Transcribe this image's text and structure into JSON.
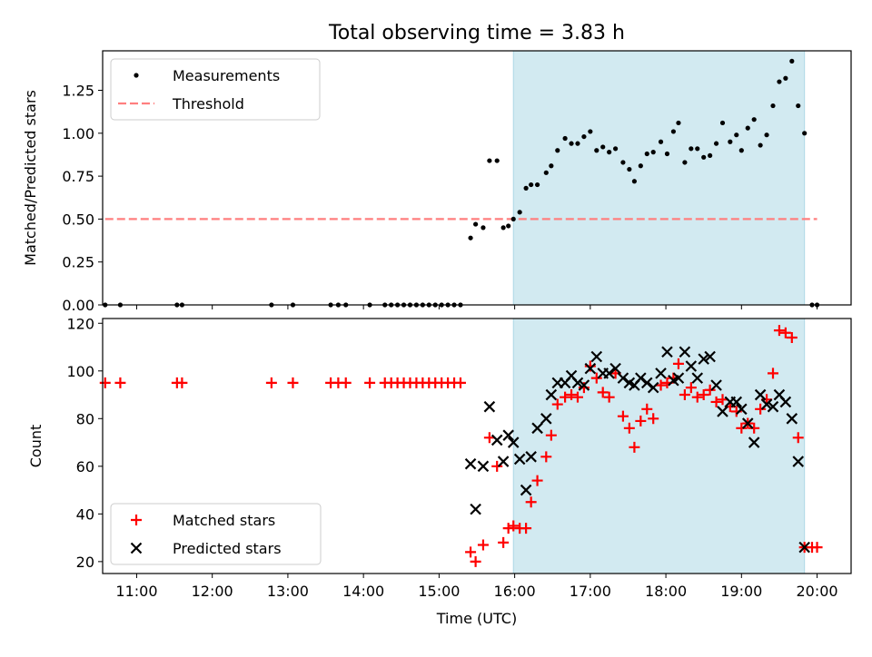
{
  "title": "Total observing time = 3.83 h",
  "colors": {
    "shade": "#add8e6",
    "threshold": "#ff7f7f",
    "matched": "#ff0000",
    "predicted": "#000000"
  },
  "chart_data": [
    {
      "type": "scatter",
      "panel": "top",
      "ylabel": "Matched/Predicted stars",
      "xlabel": "",
      "x_unit": "time (UTC)",
      "xlim": [
        "10:33",
        "20:27"
      ],
      "ylim": [
        0,
        1.48
      ],
      "yticks": [
        0,
        0.25,
        0.5,
        0.75,
        1.0,
        1.25
      ],
      "ytick_labels": [
        "0.00",
        "0.25",
        "0.50",
        "0.75",
        "1.00",
        "1.25"
      ],
      "shaded_interval": [
        "15:59",
        "19:50"
      ],
      "threshold": {
        "value": 0.5,
        "xrange": [
          "10:35",
          "20:00"
        ]
      },
      "legend": {
        "placement": "top-left",
        "entries": [
          "Measurements",
          "Threshold"
        ]
      },
      "series": [
        {
          "name": "Measurements",
          "points": [
            [
              "10:35",
              0
            ],
            [
              "10:47",
              0
            ],
            [
              "11:32",
              0
            ],
            [
              "11:36",
              0
            ],
            [
              "12:47",
              0
            ],
            [
              "13:04",
              0
            ],
            [
              "13:34",
              0
            ],
            [
              "13:40",
              0
            ],
            [
              "13:46",
              0
            ],
            [
              "14:05",
              0
            ],
            [
              "14:17",
              0
            ],
            [
              "14:22",
              0
            ],
            [
              "14:27",
              0
            ],
            [
              "14:32",
              0
            ],
            [
              "14:37",
              0
            ],
            [
              "14:42",
              0
            ],
            [
              "14:47",
              0
            ],
            [
              "14:52",
              0
            ],
            [
              "14:57",
              0
            ],
            [
              "15:02",
              0
            ],
            [
              "15:07",
              0
            ],
            [
              "15:12",
              0
            ],
            [
              "15:17",
              0
            ],
            [
              "15:25",
              0.39
            ],
            [
              "15:29",
              0.47
            ],
            [
              "15:35",
              0.45
            ],
            [
              "15:40",
              0.84
            ],
            [
              "15:46",
              0.84
            ],
            [
              "15:51",
              0.45
            ],
            [
              "15:55",
              0.46
            ],
            [
              "15:59",
              0.5
            ],
            [
              "16:04",
              0.54
            ],
            [
              "16:09",
              0.68
            ],
            [
              "16:13",
              0.7
            ],
            [
              "16:18",
              0.7
            ],
            [
              "16:25",
              0.77
            ],
            [
              "16:29",
              0.81
            ],
            [
              "16:34",
              0.9
            ],
            [
              "16:40",
              0.97
            ],
            [
              "16:45",
              0.94
            ],
            [
              "16:50",
              0.94
            ],
            [
              "16:55",
              0.98
            ],
            [
              "17:00",
              1.01
            ],
            [
              "17:05",
              0.9
            ],
            [
              "17:10",
              0.92
            ],
            [
              "17:15",
              0.89
            ],
            [
              "17:20",
              0.91
            ],
            [
              "17:26",
              0.83
            ],
            [
              "17:31",
              0.79
            ],
            [
              "17:35",
              0.72
            ],
            [
              "17:40",
              0.81
            ],
            [
              "17:45",
              0.88
            ],
            [
              "17:50",
              0.89
            ],
            [
              "17:56",
              0.95
            ],
            [
              "18:01",
              0.88
            ],
            [
              "18:06",
              1.01
            ],
            [
              "18:10",
              1.06
            ],
            [
              "18:15",
              0.83
            ],
            [
              "18:20",
              0.91
            ],
            [
              "18:25",
              0.91
            ],
            [
              "18:30",
              0.86
            ],
            [
              "18:35",
              0.87
            ],
            [
              "18:40",
              0.94
            ],
            [
              "18:45",
              1.06
            ],
            [
              "18:51",
              0.95
            ],
            [
              "18:56",
              0.99
            ],
            [
              "19:00",
              0.9
            ],
            [
              "19:05",
              1.03
            ],
            [
              "19:10",
              1.08
            ],
            [
              "19:15",
              0.93
            ],
            [
              "19:20",
              0.99
            ],
            [
              "19:25",
              1.16
            ],
            [
              "19:30",
              1.3
            ],
            [
              "19:35",
              1.32
            ],
            [
              "19:40",
              1.42
            ],
            [
              "19:45",
              1.16
            ],
            [
              "19:50",
              1.0
            ],
            [
              "19:56",
              0
            ],
            [
              "20:00",
              0
            ]
          ]
        }
      ]
    },
    {
      "type": "scatter",
      "panel": "bottom",
      "xlabel": "Time (UTC)",
      "ylabel": "Count",
      "xlim": [
        "10:33",
        "20:27"
      ],
      "ylim": [
        15,
        122
      ],
      "xticks": [
        "11:00",
        "12:00",
        "13:00",
        "14:00",
        "15:00",
        "16:00",
        "17:00",
        "18:00",
        "19:00",
        "20:00"
      ],
      "yticks": [
        20,
        40,
        60,
        80,
        100,
        120
      ],
      "shaded_interval": [
        "15:59",
        "19:50"
      ],
      "legend": {
        "placement": "bottom-left",
        "entries": [
          "Matched stars",
          "Predicted stars"
        ]
      },
      "series": [
        {
          "name": "Matched stars",
          "marker": "+",
          "points": [
            [
              "10:35",
              95
            ],
            [
              "10:47",
              95
            ],
            [
              "11:32",
              95
            ],
            [
              "11:36",
              95
            ],
            [
              "12:47",
              95
            ],
            [
              "13:04",
              95
            ],
            [
              "13:34",
              95
            ],
            [
              "13:40",
              95
            ],
            [
              "13:46",
              95
            ],
            [
              "14:05",
              95
            ],
            [
              "14:17",
              95
            ],
            [
              "14:22",
              95
            ],
            [
              "14:27",
              95
            ],
            [
              "14:32",
              95
            ],
            [
              "14:37",
              95
            ],
            [
              "14:42",
              95
            ],
            [
              "14:47",
              95
            ],
            [
              "14:52",
              95
            ],
            [
              "14:57",
              95
            ],
            [
              "15:02",
              95
            ],
            [
              "15:07",
              95
            ],
            [
              "15:12",
              95
            ],
            [
              "15:17",
              95
            ],
            [
              "15:25",
              24
            ],
            [
              "15:29",
              20
            ],
            [
              "15:35",
              27
            ],
            [
              "15:40",
              72
            ],
            [
              "15:46",
              60
            ],
            [
              "15:51",
              28
            ],
            [
              "15:55",
              34
            ],
            [
              "15:59",
              35
            ],
            [
              "16:04",
              34
            ],
            [
              "16:09",
              34
            ],
            [
              "16:13",
              45
            ],
            [
              "16:18",
              54
            ],
            [
              "16:25",
              64
            ],
            [
              "16:29",
              73
            ],
            [
              "16:34",
              86
            ],
            [
              "16:40",
              89
            ],
            [
              "16:45",
              90
            ],
            [
              "16:50",
              89
            ],
            [
              "16:55",
              93
            ],
            [
              "17:00",
              102
            ],
            [
              "17:05",
              97
            ],
            [
              "17:10",
              91
            ],
            [
              "17:15",
              89
            ],
            [
              "17:20",
              99
            ],
            [
              "17:26",
              81
            ],
            [
              "17:31",
              76
            ],
            [
              "17:35",
              68
            ],
            [
              "17:40",
              79
            ],
            [
              "17:45",
              84
            ],
            [
              "17:50",
              80
            ],
            [
              "17:56",
              94
            ],
            [
              "18:01",
              95
            ],
            [
              "18:06",
              97
            ],
            [
              "18:10",
              103
            ],
            [
              "18:15",
              90
            ],
            [
              "18:20",
              93
            ],
            [
              "18:25",
              89
            ],
            [
              "18:30",
              90
            ],
            [
              "18:35",
              92
            ],
            [
              "18:40",
              87
            ],
            [
              "18:45",
              88
            ],
            [
              "18:51",
              85
            ],
            [
              "18:56",
              83
            ],
            [
              "19:00",
              76
            ],
            [
              "19:05",
              78
            ],
            [
              "19:10",
              76
            ],
            [
              "19:15",
              84
            ],
            [
              "19:20",
              88
            ],
            [
              "19:25",
              99
            ],
            [
              "19:30",
              117
            ],
            [
              "19:35",
              116
            ],
            [
              "19:40",
              114
            ],
            [
              "19:45",
              72
            ],
            [
              "19:50",
              26
            ],
            [
              "19:56",
              26
            ],
            [
              "20:00",
              26
            ]
          ]
        },
        {
          "name": "Predicted stars",
          "marker": "x",
          "points": [
            [
              "15:25",
              61
            ],
            [
              "15:29",
              42
            ],
            [
              "15:35",
              60
            ],
            [
              "15:40",
              85
            ],
            [
              "15:46",
              71
            ],
            [
              "15:51",
              62
            ],
            [
              "15:55",
              73
            ],
            [
              "15:59",
              70
            ],
            [
              "16:04",
              63
            ],
            [
              "16:09",
              50
            ],
            [
              "16:13",
              64
            ],
            [
              "16:18",
              76
            ],
            [
              "16:25",
              80
            ],
            [
              "16:29",
              90
            ],
            [
              "16:34",
              95
            ],
            [
              "16:40",
              95
            ],
            [
              "16:45",
              98
            ],
            [
              "16:50",
              95
            ],
            [
              "16:55",
              94
            ],
            [
              "17:00",
              101
            ],
            [
              "17:05",
              106
            ],
            [
              "17:10",
              99
            ],
            [
              "17:15",
              99
            ],
            [
              "17:20",
              101
            ],
            [
              "17:26",
              97
            ],
            [
              "17:31",
              95
            ],
            [
              "17:35",
              94
            ],
            [
              "17:40",
              97
            ],
            [
              "17:45",
              95
            ],
            [
              "17:50",
              93
            ],
            [
              "17:56",
              99
            ],
            [
              "18:01",
              108
            ],
            [
              "18:06",
              96
            ],
            [
              "18:10",
              97
            ],
            [
              "18:15",
              108
            ],
            [
              "18:20",
              102
            ],
            [
              "18:25",
              97
            ],
            [
              "18:30",
              105
            ],
            [
              "18:35",
              106
            ],
            [
              "18:40",
              94
            ],
            [
              "18:45",
              83
            ],
            [
              "18:51",
              87
            ],
            [
              "18:56",
              87
            ],
            [
              "19:00",
              84
            ],
            [
              "19:05",
              78
            ],
            [
              "19:10",
              70
            ],
            [
              "19:15",
              90
            ],
            [
              "19:20",
              86
            ],
            [
              "19:25",
              85
            ],
            [
              "19:30",
              90
            ],
            [
              "19:35",
              87
            ],
            [
              "19:40",
              80
            ],
            [
              "19:45",
              62
            ],
            [
              "19:50",
              26
            ]
          ]
        }
      ]
    }
  ]
}
